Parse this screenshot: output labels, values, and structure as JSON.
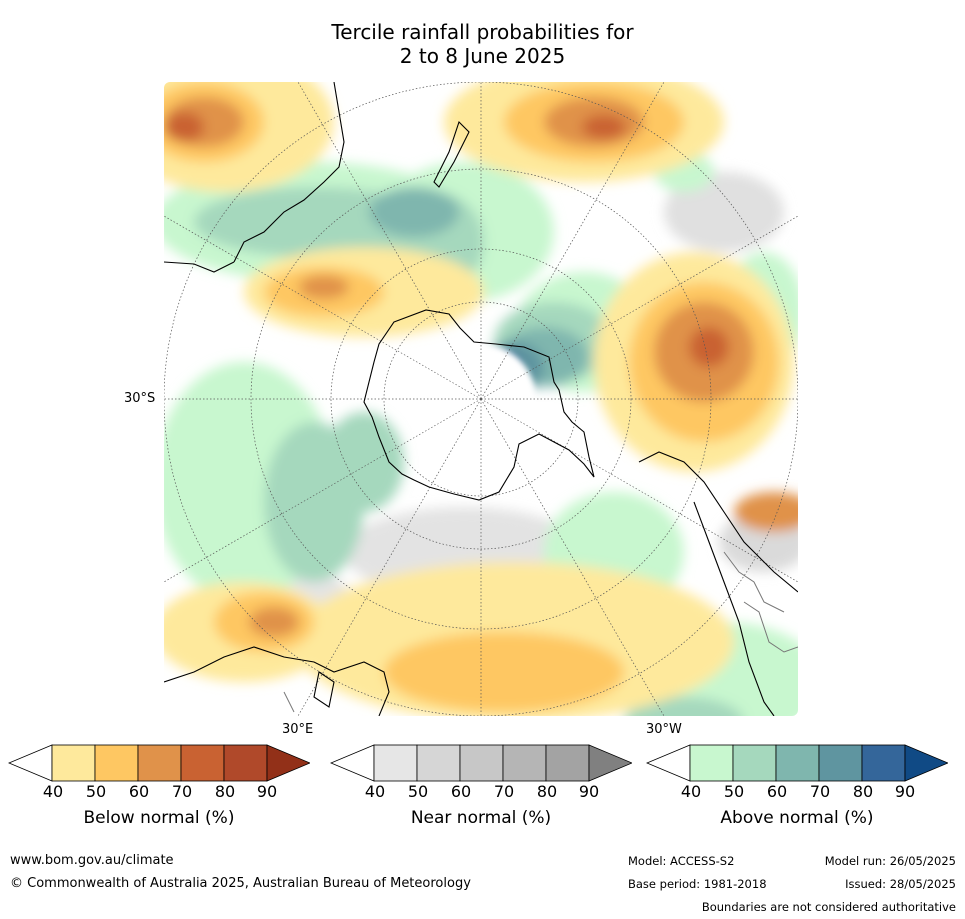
{
  "title": {
    "line1": "Tercile rainfall probabilities for",
    "line2": "2 to 8 June 2025"
  },
  "map": {
    "lat_label": "30°S",
    "lon_labels": [
      "30°E",
      "30°W"
    ]
  },
  "colorbars": [
    {
      "label": "Below normal (%)",
      "ticks": [
        "40",
        "50",
        "60",
        "70",
        "80",
        "90"
      ],
      "colors": [
        "#ffffff",
        "#fee99c",
        "#fec762",
        "#e0924a",
        "#c96232",
        "#b0492a",
        "#923018"
      ]
    },
    {
      "label": "Near normal (%)",
      "ticks": [
        "40",
        "50",
        "60",
        "70",
        "80",
        "90"
      ],
      "colors": [
        "#ffffff",
        "#e6e6e6",
        "#d6d6d6",
        "#c7c7c7",
        "#b5b5b5",
        "#a3a3a3",
        "#808080"
      ]
    },
    {
      "label": "Above normal (%)",
      "ticks": [
        "40",
        "50",
        "60",
        "70",
        "80",
        "90"
      ],
      "colors": [
        "#ffffff",
        "#c8f7cf",
        "#a5d8bd",
        "#7fb6ae",
        "#5f95a0",
        "#34669a",
        "#104a85"
      ]
    }
  ],
  "footer": {
    "website": "www.bom.gov.au/climate",
    "copyright": "© Commonwealth of Australia 2025, Australian Bureau of Meteorology",
    "model": "Model: ACCESS-S2",
    "base_period": "Base period: 1981-2018",
    "model_run": "Model run: 26/05/2025",
    "issued": "Issued: 28/05/2025",
    "disclaimer": "Boundaries are not considered authoritative"
  }
}
